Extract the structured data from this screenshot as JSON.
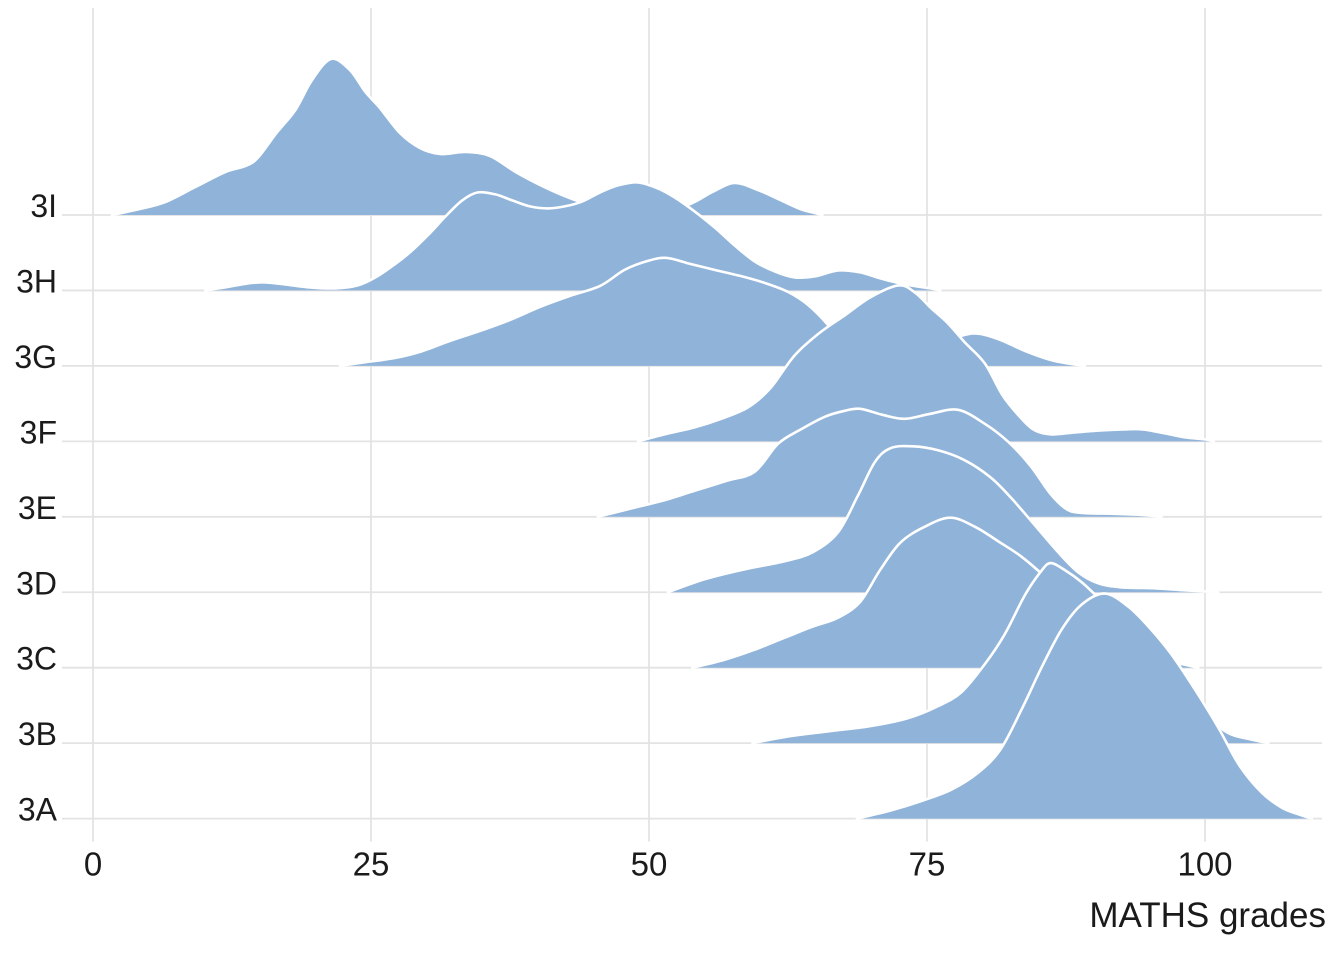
{
  "axes": {
    "x_label": "MATHS grades",
    "x_ticks": [
      0,
      25,
      50,
      75,
      100
    ],
    "x_tick_labels": [
      "0",
      "25",
      "50",
      "75",
      "100"
    ],
    "y_labels_top_to_bottom": [
      "3I",
      "3H",
      "3G",
      "3F",
      "3E",
      "3D",
      "3C",
      "3B",
      "3A"
    ]
  },
  "colors": {
    "ridge_fill": "#90B3D9",
    "ridge_stroke": "#FFFFFF",
    "gridline": "#E3E3E3",
    "text": "#1B1B1B",
    "background": "#FFFFFF"
  },
  "chart_data": {
    "type": "area",
    "subtype": "ridgeline-density (joyplot)",
    "title": "",
    "xlabel": "MATHS grades",
    "ylabel": "",
    "x_domain": [
      0,
      110
    ],
    "x_ticks": [
      0,
      25,
      50,
      75,
      100
    ],
    "grid": "on",
    "legend": "none",
    "categories_top_to_bottom": [
      "3I",
      "3H",
      "3G",
      "3F",
      "3E",
      "3D",
      "3C",
      "3B",
      "3A"
    ],
    "height_units": "pixels above row baseline (one row spacing = 75.45px)",
    "series": [
      {
        "name": "3I",
        "points": [
          [
            1.7,
            0
          ],
          [
            4.2,
            6
          ],
          [
            6.5,
            13
          ],
          [
            9.2,
            28
          ],
          [
            11.9,
            43
          ],
          [
            13.7,
            49
          ],
          [
            14.8,
            57
          ],
          [
            16.5,
            82
          ],
          [
            18.2,
            105
          ],
          [
            19.7,
            135
          ],
          [
            21.4,
            156
          ],
          [
            23.1,
            145
          ],
          [
            24.5,
            123
          ],
          [
            25.8,
            107
          ],
          [
            27.6,
            82
          ],
          [
            29.4,
            67
          ],
          [
            31.2,
            61
          ],
          [
            33.5,
            63
          ],
          [
            35.7,
            59
          ],
          [
            38.0,
            43
          ],
          [
            40.2,
            30
          ],
          [
            42.4,
            19
          ],
          [
            44.7,
            10
          ],
          [
            46.9,
            4
          ],
          [
            49.2,
            3
          ],
          [
            51.4,
            5
          ],
          [
            53.7,
            11
          ],
          [
            55.7,
            23
          ],
          [
            57.7,
            32
          ],
          [
            59.8,
            25
          ],
          [
            61.8,
            15
          ],
          [
            63.6,
            6
          ],
          [
            64.9,
            2
          ],
          [
            65.6,
            0
          ]
        ]
      },
      {
        "name": "3H",
        "points": [
          [
            10.1,
            0
          ],
          [
            11.9,
            3
          ],
          [
            13.9,
            7
          ],
          [
            15.5,
            8
          ],
          [
            17.3,
            6
          ],
          [
            19.5,
            3
          ],
          [
            21.8,
            2
          ],
          [
            23.8,
            5
          ],
          [
            25.4,
            13
          ],
          [
            27.0,
            25
          ],
          [
            28.5,
            38
          ],
          [
            30.1,
            55
          ],
          [
            31.7,
            74
          ],
          [
            33.2,
            90
          ],
          [
            34.6,
            98
          ],
          [
            36.2,
            96
          ],
          [
            37.7,
            90
          ],
          [
            39.3,
            84
          ],
          [
            40.9,
            82
          ],
          [
            42.4,
            84
          ],
          [
            44.0,
            89
          ],
          [
            45.6,
            98
          ],
          [
            47.2,
            105
          ],
          [
            49.0,
            108
          ],
          [
            50.8,
            102
          ],
          [
            52.3,
            93
          ],
          [
            54.1,
            79
          ],
          [
            55.9,
            63
          ],
          [
            57.7,
            45
          ],
          [
            59.5,
            29
          ],
          [
            61.3,
            19
          ],
          [
            63.1,
            13
          ],
          [
            64.9,
            14
          ],
          [
            67.0,
            20
          ],
          [
            69.0,
            18
          ],
          [
            70.8,
            12
          ],
          [
            73.0,
            6
          ],
          [
            75.3,
            2
          ],
          [
            76.2,
            0
          ]
        ]
      },
      {
        "name": "3G",
        "points": [
          [
            22.2,
            0
          ],
          [
            24.7,
            4
          ],
          [
            27.2,
            8
          ],
          [
            29.4,
            14
          ],
          [
            32.1,
            25
          ],
          [
            34.8,
            35
          ],
          [
            37.5,
            46
          ],
          [
            40.2,
            59
          ],
          [
            42.9,
            70
          ],
          [
            45.6,
            80
          ],
          [
            47.8,
            96
          ],
          [
            49.9,
            105
          ],
          [
            51.6,
            108
          ],
          [
            53.7,
            102
          ],
          [
            55.9,
            96
          ],
          [
            58.2,
            90
          ],
          [
            60.4,
            83
          ],
          [
            62.5,
            74
          ],
          [
            64.3,
            61
          ],
          [
            66.1,
            41
          ],
          [
            67.9,
            16
          ],
          [
            69.7,
            6
          ],
          [
            71.5,
            3
          ],
          [
            73.7,
            11
          ],
          [
            76.2,
            22
          ],
          [
            78.4,
            31
          ],
          [
            79.8,
            32
          ],
          [
            81.6,
            26
          ],
          [
            83.8,
            15
          ],
          [
            86.1,
            6
          ],
          [
            87.9,
            2
          ],
          [
            89.2,
            0
          ]
        ]
      },
      {
        "name": "3F",
        "points": [
          [
            49.0,
            0
          ],
          [
            51.4,
            7
          ],
          [
            54.1,
            14
          ],
          [
            56.6,
            23
          ],
          [
            58.9,
            34
          ],
          [
            60.9,
            53
          ],
          [
            63.1,
            86
          ],
          [
            65.4,
            109
          ],
          [
            67.6,
            126
          ],
          [
            69.9,
            144
          ],
          [
            72.4,
            156
          ],
          [
            73.9,
            149
          ],
          [
            75.4,
            133
          ],
          [
            76.8,
            119
          ],
          [
            78.4,
            99
          ],
          [
            80.2,
            78
          ],
          [
            81.8,
            46
          ],
          [
            83.4,
            24
          ],
          [
            84.7,
            11
          ],
          [
            86.2,
            7
          ],
          [
            88.3,
            9
          ],
          [
            90.6,
            11
          ],
          [
            92.8,
            12
          ],
          [
            94.4,
            12
          ],
          [
            96.4,
            8
          ],
          [
            98.2,
            4
          ],
          [
            100.0,
            2
          ],
          [
            100.8,
            0
          ]
        ]
      },
      {
        "name": "3E",
        "points": [
          [
            45.4,
            0
          ],
          [
            48.3,
            8
          ],
          [
            51.2,
            16
          ],
          [
            54.1,
            26
          ],
          [
            57.0,
            36
          ],
          [
            59.5,
            45
          ],
          [
            61.6,
            73
          ],
          [
            63.6,
            87
          ],
          [
            65.8,
            100
          ],
          [
            67.6,
            106
          ],
          [
            69.0,
            108
          ],
          [
            71.0,
            102
          ],
          [
            73.0,
            98
          ],
          [
            75.3,
            103
          ],
          [
            77.8,
            107
          ],
          [
            80.2,
            93
          ],
          [
            82.3,
            75
          ],
          [
            84.3,
            51
          ],
          [
            86.1,
            23
          ],
          [
            87.5,
            8
          ],
          [
            88.8,
            4
          ],
          [
            91.9,
            3
          ],
          [
            94.2,
            2
          ],
          [
            96.1,
            0
          ]
        ]
      },
      {
        "name": "3D",
        "points": [
          [
            51.7,
            0
          ],
          [
            55.0,
            13
          ],
          [
            58.6,
            23
          ],
          [
            62.2,
            31
          ],
          [
            64.7,
            40
          ],
          [
            67.0,
            60
          ],
          [
            68.8,
            97
          ],
          [
            70.3,
            130
          ],
          [
            71.7,
            144
          ],
          [
            73.7,
            146
          ],
          [
            76.0,
            142
          ],
          [
            78.4,
            132
          ],
          [
            80.7,
            115
          ],
          [
            82.6,
            94
          ],
          [
            84.7,
            67
          ],
          [
            86.8,
            40
          ],
          [
            88.6,
            20
          ],
          [
            90.4,
            9
          ],
          [
            92.4,
            5
          ],
          [
            95.5,
            4
          ],
          [
            98.2,
            2
          ],
          [
            101.2,
            0
          ]
        ]
      },
      {
        "name": "3C",
        "points": [
          [
            53.9,
            0
          ],
          [
            56.8,
            8
          ],
          [
            59.5,
            18
          ],
          [
            62.2,
            30
          ],
          [
            64.7,
            41
          ],
          [
            67.0,
            50
          ],
          [
            69.0,
            66
          ],
          [
            70.8,
            98
          ],
          [
            72.6,
            125
          ],
          [
            74.8,
            141
          ],
          [
            77.1,
            150
          ],
          [
            79.3,
            141
          ],
          [
            81.6,
            125
          ],
          [
            83.5,
            111
          ],
          [
            85.6,
            91
          ],
          [
            87.7,
            68
          ],
          [
            89.7,
            46
          ],
          [
            91.6,
            28
          ],
          [
            93.7,
            16
          ],
          [
            95.9,
            8
          ],
          [
            98.2,
            3
          ],
          [
            99.4,
            0
          ]
        ]
      },
      {
        "name": "3B",
        "points": [
          [
            59.3,
            0
          ],
          [
            62.7,
            7
          ],
          [
            66.3,
            12
          ],
          [
            69.9,
            17
          ],
          [
            73.3,
            25
          ],
          [
            76.0,
            37
          ],
          [
            78.1,
            51
          ],
          [
            80.2,
            79
          ],
          [
            82.0,
            109
          ],
          [
            83.8,
            148
          ],
          [
            85.2,
            171
          ],
          [
            86.1,
            180
          ],
          [
            87.4,
            173
          ],
          [
            88.9,
            161
          ],
          [
            90.6,
            143
          ],
          [
            92.4,
            121
          ],
          [
            94.2,
            98
          ],
          [
            96.1,
            75
          ],
          [
            98.2,
            48
          ],
          [
            100.0,
            28
          ],
          [
            102.1,
            10
          ],
          [
            104.0,
            4
          ],
          [
            105.7,
            0
          ]
        ]
      },
      {
        "name": "3A",
        "points": [
          [
            68.7,
            0
          ],
          [
            71.7,
            8
          ],
          [
            74.6,
            18
          ],
          [
            77.2,
            29
          ],
          [
            79.6,
            46
          ],
          [
            81.6,
            69
          ],
          [
            83.5,
            109
          ],
          [
            85.3,
            151
          ],
          [
            87.1,
            189
          ],
          [
            88.9,
            214
          ],
          [
            91.0,
            225
          ],
          [
            93.1,
            212
          ],
          [
            95.0,
            191
          ],
          [
            97.0,
            164
          ],
          [
            99.1,
            129
          ],
          [
            101.2,
            91
          ],
          [
            103.1,
            53
          ],
          [
            105.1,
            26
          ],
          [
            106.9,
            11
          ],
          [
            108.5,
            4
          ],
          [
            109.6,
            0
          ]
        ]
      }
    ]
  },
  "layout_note": "densities overlap upward; rows drawn top-to-bottom so lower rows paint over upper rows"
}
